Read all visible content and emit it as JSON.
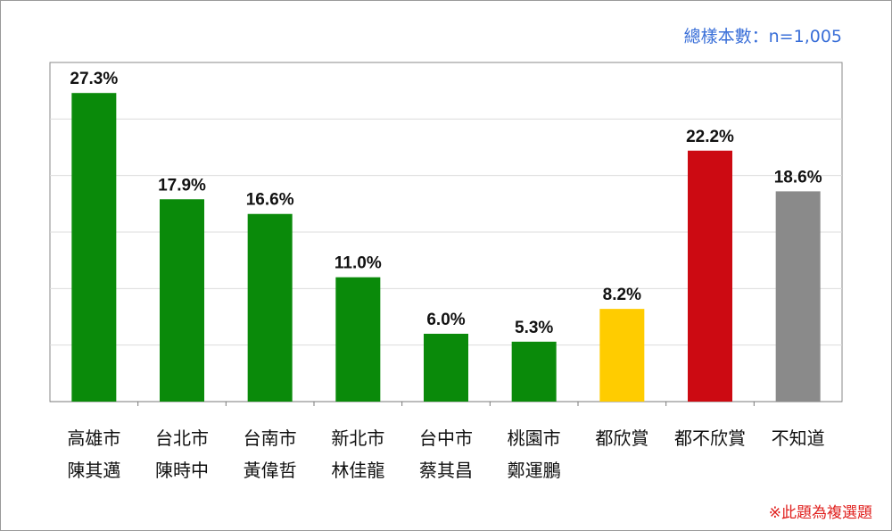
{
  "header": {
    "sample_size": "總樣本數：n=1,005"
  },
  "footer": {
    "note": "※此題為複選題"
  },
  "chart_data": {
    "type": "bar",
    "ylim": [
      0,
      30
    ],
    "grid": true,
    "value_suffix": "%",
    "categories": [
      [
        "高雄市",
        "陳其邁"
      ],
      [
        "台北市",
        "陳時中"
      ],
      [
        "台南市",
        "黃偉哲"
      ],
      [
        "新北市",
        "林佳龍"
      ],
      [
        "台中市",
        "蔡其昌"
      ],
      [
        "桃園市",
        "鄭運鵬"
      ],
      [
        "都欣賞"
      ],
      [
        "都不欣賞"
      ],
      [
        "不知道"
      ]
    ],
    "values": [
      27.3,
      17.9,
      16.6,
      11.0,
      6.0,
      5.3,
      8.2,
      22.2,
      18.6
    ],
    "labels": [
      "27.3%",
      "17.9%",
      "16.6%",
      "11.0%",
      "6.0%",
      "5.3%",
      "8.2%",
      "22.2%",
      "18.6%"
    ],
    "colors": [
      "#0a8a0a",
      "#0a8a0a",
      "#0a8a0a",
      "#0a8a0a",
      "#0a8a0a",
      "#0a8a0a",
      "#ffcc00",
      "#cc0a12",
      "#8a8a8a"
    ]
  }
}
